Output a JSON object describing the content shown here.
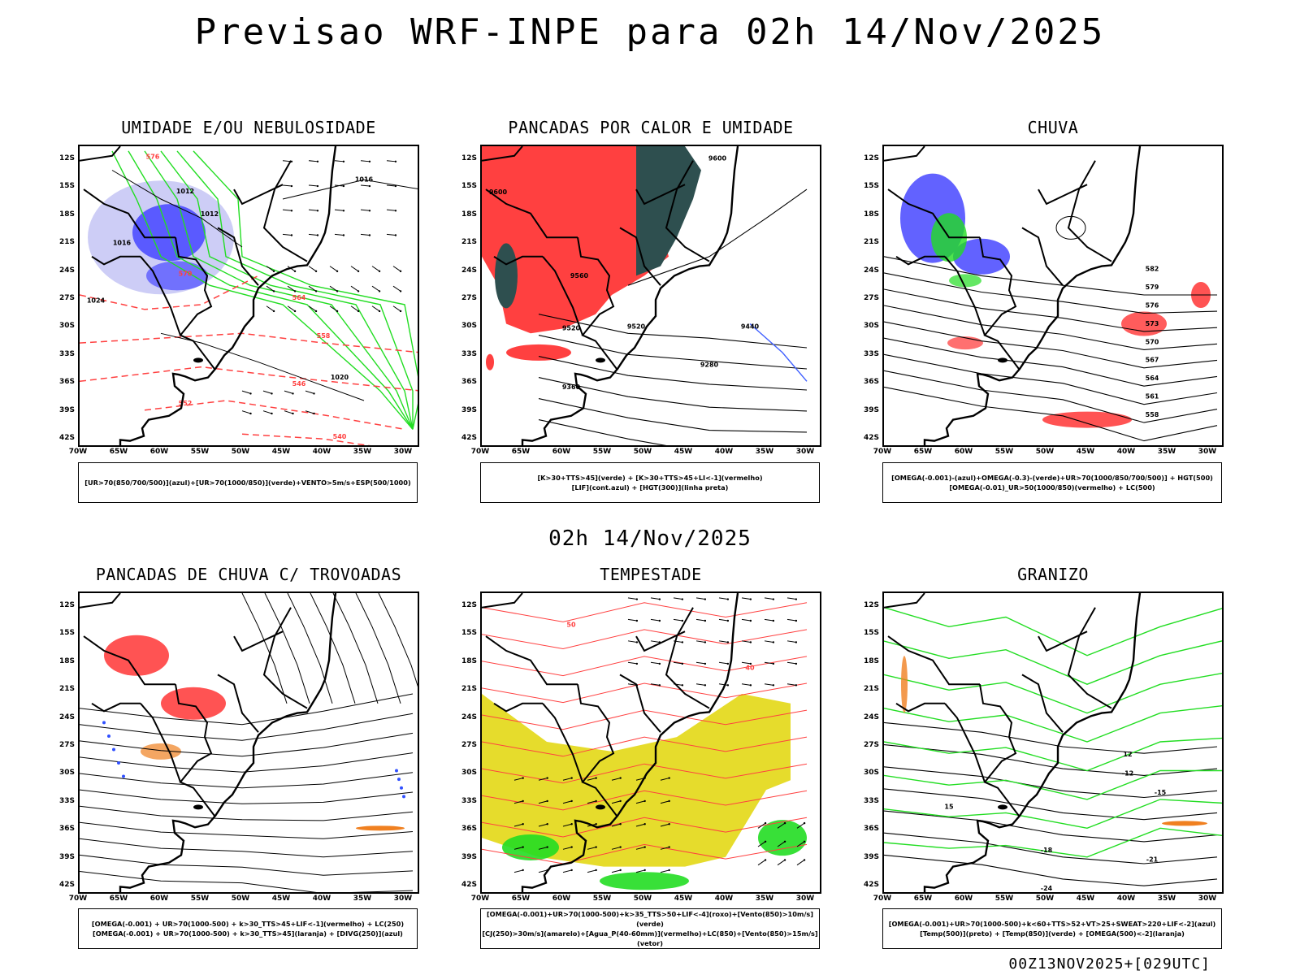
{
  "main_title": "Previsao WRF-INPE  para 02h 14/Nov/2025",
  "middle_title": "02h 14/Nov/2025",
  "footer": "00Z13NOV2025+[029UTC]",
  "lat_labels": [
    "12S",
    "15S",
    "18S",
    "21S",
    "24S",
    "27S",
    "30S",
    "33S",
    "36S",
    "39S",
    "42S"
  ],
  "lon_labels": [
    "70W",
    "65W",
    "60W",
    "55W",
    "50W",
    "45W",
    "40W",
    "35W",
    "30W"
  ],
  "panels": [
    {
      "title": "UMIDADE E/OU NEBULOSIDADE",
      "legend": [
        "[UR>70(850/700/500)](azul)+[UR>70(1000/850)](verde)+VENTO>5m/s+ESP(500/1000)"
      ],
      "contour_labels": [
        "1012",
        "1016",
        "1020",
        "1024",
        "576",
        "570",
        "564",
        "558",
        "552",
        "546",
        "540"
      ]
    },
    {
      "title": "PANCADAS POR CALOR E UMIDADE",
      "legend": [
        "[K>30+TTS>45](verde) + [K>30+TTS>45+LI<-1](vermelho)",
        "[LIF](cont.azul) + [HGT(300)](linha preta)"
      ],
      "contour_labels": [
        "9600",
        "9560",
        "9520",
        "9440",
        "9360",
        "9280",
        "9520",
        "9600"
      ]
    },
    {
      "title": "CHUVA",
      "legend": [
        "[OMEGA(-0.001)-(azul)+OMEGA(-0.3)-(verde)+UR>70(1000/850/700/500)] + HGT(500)",
        "[OMEGA(-0.01)_UR>50(1000/850)(vermelho) + LC(500)"
      ],
      "contour_labels": [
        "582",
        "579",
        "576",
        "573",
        "570",
        "567",
        "564",
        "561",
        "558"
      ]
    },
    {
      "title": "PANCADAS DE CHUVA C/ TROVOADAS",
      "legend": [
        "[OMEGA(-0.001) + UR>70(1000-500) + k>30_TTS>45+LIF<-1](vermelho) + LC(250)",
        "[OMEGA(-0.001) + UR>70(1000-500) + k>30_TTS>45](laranja) + [DIVG(250)](azul)"
      ],
      "contour_labels": []
    },
    {
      "title": "TEMPESTADE",
      "legend": [
        "[OMEGA(-0.001)+UR>70(1000-500)+k>35_TTS>50+LIF<-4](roxo)+[Vento(850)>10m/s](verde)",
        "[CJ(250)>30m/s](amarelo)+[Agua_P(40-60mm)](vermelho)+LC(850)+[Vento(850)>15m/s](vetor)"
      ],
      "contour_labels": [
        "40",
        "50"
      ]
    },
    {
      "title": "GRANIZO",
      "legend": [
        "[OMEGA(-0.001)+UR>70(1000-500)+k<60+TTS>52+VT>25+SWEAT>220+LIF<-2](azul)",
        "[Temp(500)](preto) + [Temp(850)](verde) + [OMEGA(500)<-2](laranja)"
      ],
      "contour_labels": [
        "-12",
        "-15",
        "-18",
        "-21",
        "-24",
        "12",
        "15"
      ]
    }
  ],
  "colors": {
    "coast": "#000000",
    "blue_fill": "#5a5aff",
    "light_blue_fill": "#c8c8f5",
    "green": "#22dd22",
    "red": "#ff4040",
    "dark_teal": "#2e4f4f",
    "yellow": "#e6dc2c",
    "orange": "#f08020"
  }
}
